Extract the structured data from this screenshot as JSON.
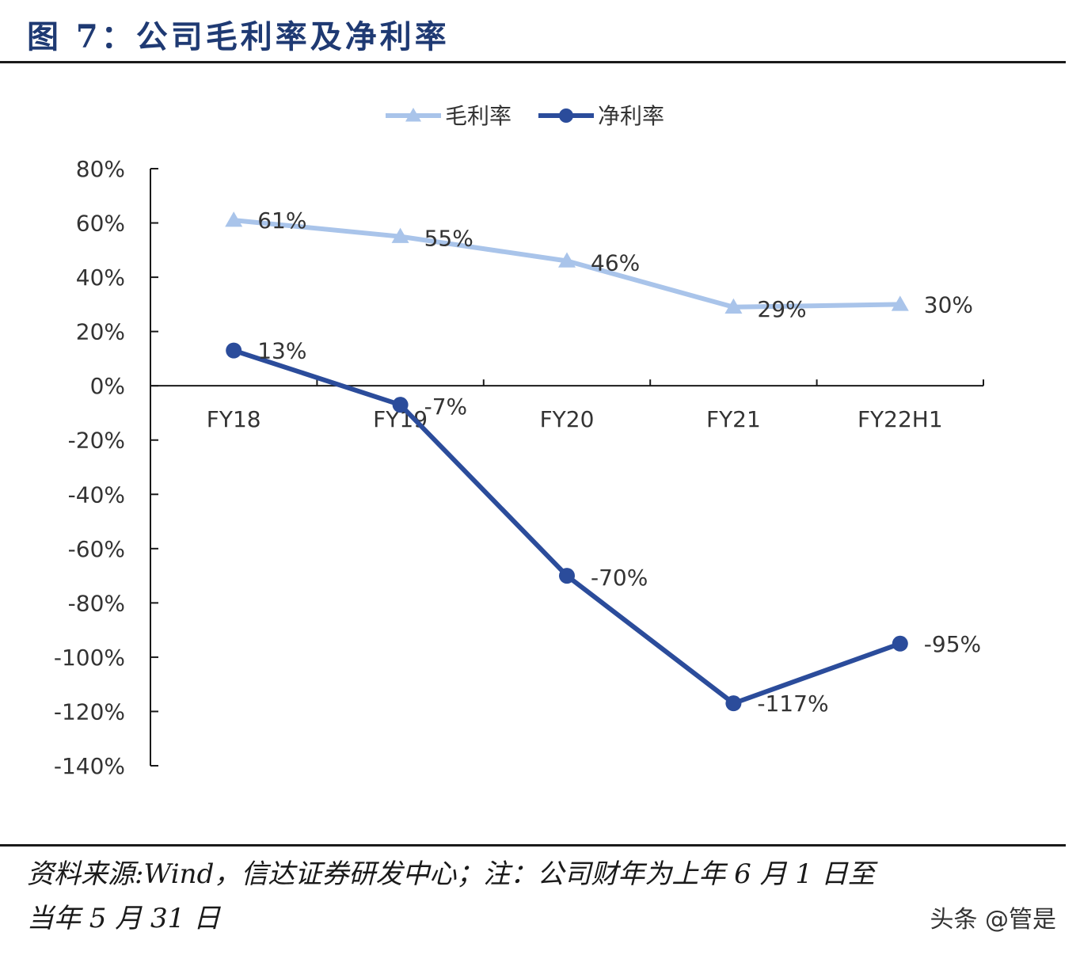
{
  "header": {
    "title": "图 7：公司毛利率及净利率"
  },
  "footer": {
    "source_line1": "资料来源:Wind，信达证券研发中心；注：公司财年为上年 6 月 1 日至",
    "source_line2": "当年 5 月 31 日",
    "watermark": "头条 @管是"
  },
  "chart_data": {
    "type": "line",
    "categories": [
      "FY18",
      "FY19",
      "FY20",
      "FY21",
      "FY22H1"
    ],
    "series": [
      {
        "name": "毛利率",
        "values": [
          61,
          55,
          46,
          29,
          30
        ],
        "labels": [
          "61%",
          "55%",
          "46%",
          "29%",
          "30%"
        ],
        "marker": "triangle",
        "color": "#a9c4ea"
      },
      {
        "name": "净利率",
        "values": [
          13,
          -7,
          -70,
          -117,
          -95
        ],
        "labels": [
          "13%",
          "-7%",
          "-70%",
          "-117%",
          "-95%"
        ],
        "marker": "circle",
        "color": "#2b4c9b"
      }
    ],
    "ylim": [
      -140,
      80
    ],
    "yticks": [
      80,
      60,
      40,
      20,
      0,
      -20,
      -40,
      -60,
      -80,
      -100,
      -120,
      -140
    ],
    "ytick_labels": [
      "80%",
      "60%",
      "40%",
      "20%",
      "0%",
      "-20%",
      "-40%",
      "-60%",
      "-80%",
      "-100%",
      "-120%",
      "-140%"
    ],
    "legend": "top-center",
    "grid": false
  }
}
